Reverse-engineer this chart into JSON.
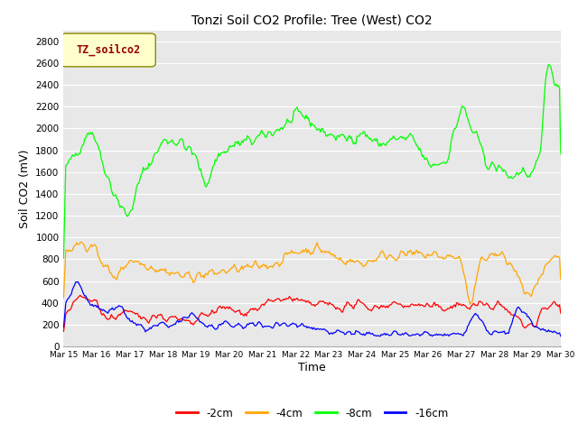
{
  "title": "Tonzi Soil CO2 Profile: Tree (West) CO2",
  "xlabel": "Time",
  "ylabel": "Soil CO2 (mV)",
  "ylim": [
    0,
    2900
  ],
  "yticks": [
    0,
    200,
    400,
    600,
    800,
    1000,
    1200,
    1400,
    1600,
    1800,
    2000,
    2200,
    2400,
    2600,
    2800
  ],
  "xtick_labels": [
    "Mar 15",
    "Mar 16",
    "Mar 17",
    "Mar 18",
    "Mar 19",
    "Mar 20",
    "Mar 21",
    "Mar 22",
    "Mar 23",
    "Mar 24",
    "Mar 25",
    "Mar 26",
    "Mar 27",
    "Mar 28",
    "Mar 29",
    "Mar 30"
  ],
  "legend_label": "TZ_soilco2",
  "legend_box_color": "#ffffcc",
  "legend_text_color": "#990000",
  "series_labels": [
    "-2cm",
    "-4cm",
    "-8cm",
    "-16cm"
  ],
  "series_colors": [
    "#ff0000",
    "#ffa500",
    "#00ff00",
    "#0000ff"
  ],
  "plot_bg_color": "#e8e8e8",
  "grid_color": "#ffffff",
  "n_points": 450
}
